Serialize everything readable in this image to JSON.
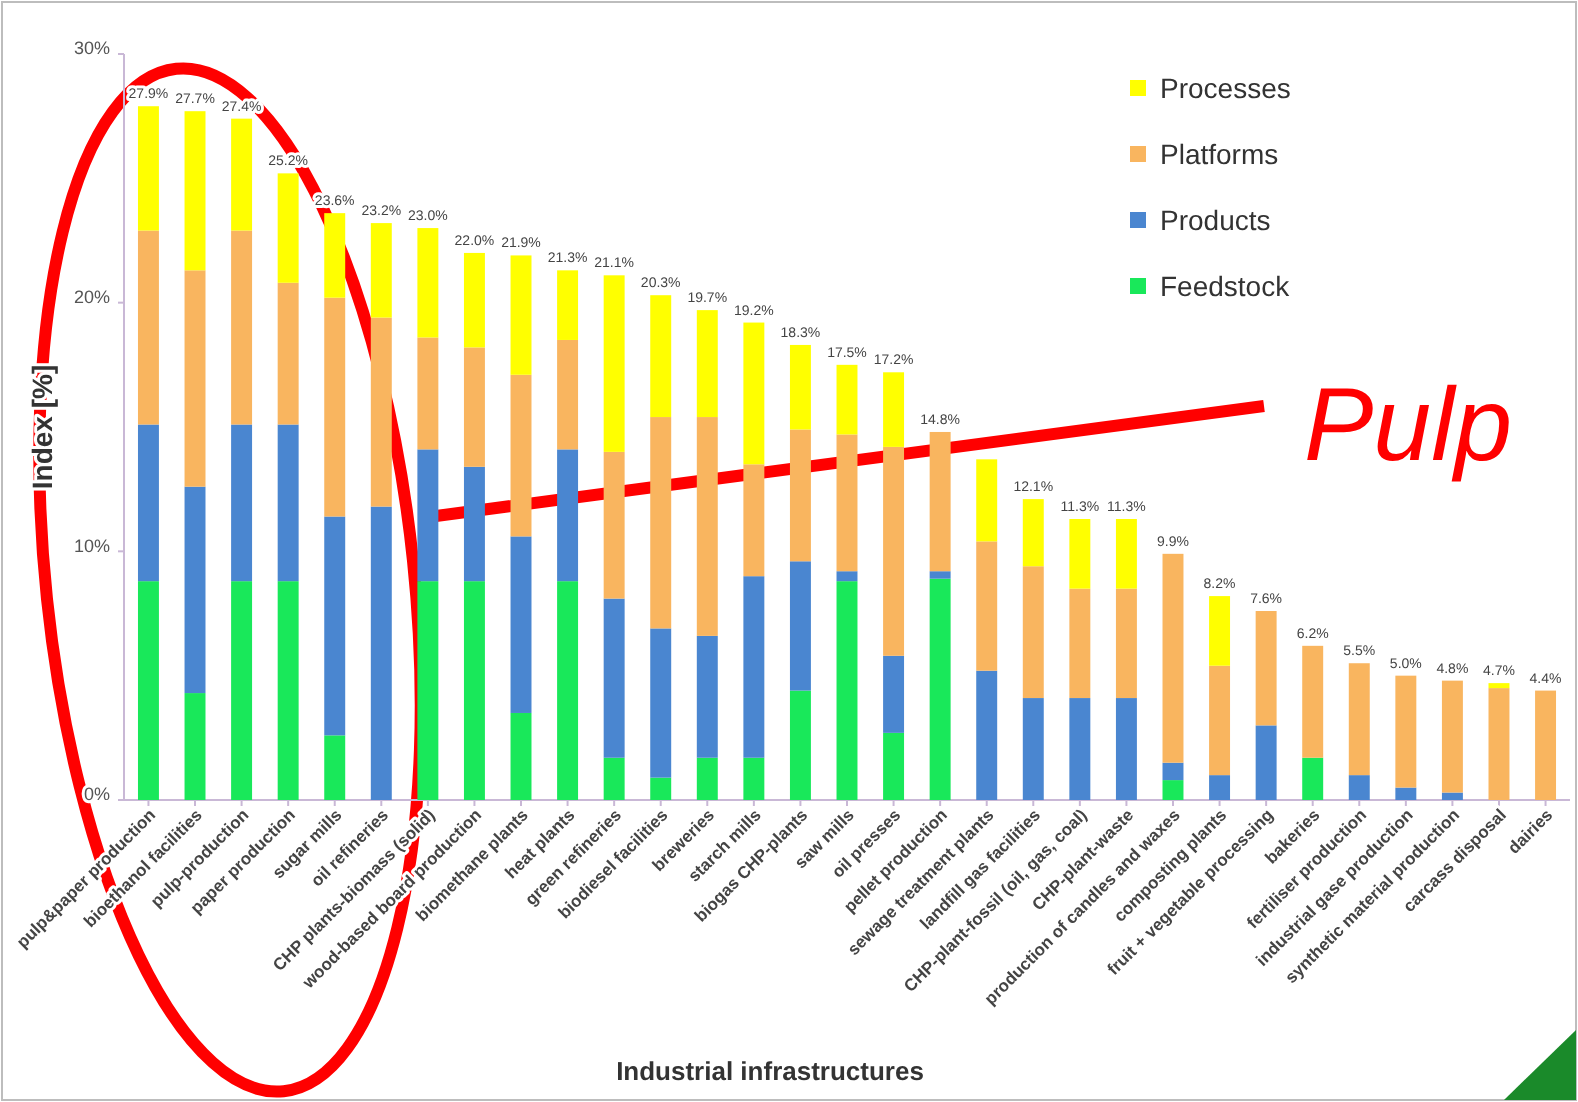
{
  "chart_data": {
    "type": "bar",
    "stacked": true,
    "xlabel": "Industrial infrastructures",
    "ylabel": "Index [%]",
    "categories": [
      "pulp&paper production",
      "bioethanol facilities",
      "pulp-production",
      "paper production",
      "sugar mills",
      "oil refineries",
      "CHP plants-biomass (solid)",
      "wood-based board production",
      "biomethane plants",
      "heat plants",
      "green refineries",
      "biodiesel facilities",
      "breweries",
      "starch mills",
      "biogas CHP-plants",
      "saw mills",
      "oil presses",
      "pellet production",
      "sewage treatment plants",
      "landfill gas facilities",
      "CHP-plant-fossil (oil, gas, coal)",
      "CHP-plant-waste",
      "production of candles and waxes",
      "composting plants",
      "fruit + vegetable processing",
      "bakeries",
      "fertiliser production",
      "industrial gase production",
      "synthetic material production",
      "carcass disposal",
      "dairies"
    ],
    "series": [
      {
        "name": "Feedstock",
        "color": "#19e85a",
        "values": [
          8.8,
          4.3,
          8.8,
          8.8,
          2.6,
          0,
          8.8,
          8.8,
          3.5,
          8.8,
          1.7,
          0.9,
          1.7,
          1.7,
          4.4,
          8.8,
          2.7,
          8.9,
          0,
          0,
          0,
          0,
          0.8,
          0,
          0,
          1.7,
          0,
          0,
          0,
          0,
          0
        ]
      },
      {
        "name": "Products",
        "color": "#4a86d0",
        "values": [
          6.3,
          8.3,
          6.3,
          6.3,
          8.8,
          11.8,
          5.3,
          4.6,
          7.1,
          5.3,
          6.4,
          6.0,
          4.9,
          7.3,
          5.2,
          0.4,
          3.1,
          0.3,
          5.2,
          4.1,
          4.1,
          4.1,
          0.7,
          1.0,
          3.0,
          0,
          1.0,
          0.5,
          0.3,
          0,
          0
        ]
      },
      {
        "name": "Platforms",
        "color": "#f9b55f",
        "values": [
          7.8,
          8.7,
          7.8,
          5.7,
          8.8,
          7.6,
          4.5,
          4.8,
          6.5,
          4.4,
          5.9,
          8.5,
          8.8,
          4.5,
          5.3,
          5.5,
          8.4,
          5.6,
          5.2,
          5.3,
          4.4,
          4.4,
          8.4,
          4.4,
          4.6,
          4.5,
          4.5,
          4.5,
          4.5,
          4.5,
          4.4
        ]
      },
      {
        "name": "Processes",
        "color": "#ffff00",
        "values": [
          5.0,
          6.4,
          4.5,
          4.4,
          3.4,
          3.8,
          4.4,
          3.8,
          4.8,
          2.8,
          7.1,
          4.9,
          4.3,
          5.7,
          3.4,
          2.8,
          3.0,
          0,
          3.3,
          2.7,
          2.8,
          2.8,
          0,
          2.8,
          0,
          0,
          0,
          0,
          0,
          0.2,
          0
        ]
      }
    ],
    "totals": [
      "27.9%",
      "27.7%",
      "27.4%",
      "25.2%",
      "23.6%",
      "23.2%",
      "23.0%",
      "22.0%",
      "21.9%",
      "21.3%",
      "21.1%",
      "20.3%",
      "19.7%",
      "19.2%",
      "18.3%",
      "17.5%",
      "17.2%",
      "14.8%",
      null,
      "12.1%",
      "11.3%",
      "11.3%",
      "9.9%",
      "8.2%",
      "7.6%",
      "6.2%",
      "5.5%",
      "5.0%",
      "4.8%",
      "4.7%",
      "4.4%"
    ],
    "ylim": [
      0,
      30
    ],
    "yticks": [
      {
        "value": 0,
        "label": "0%"
      },
      {
        "value": 10,
        "label": "10%"
      },
      {
        "value": 20,
        "label": "20%"
      },
      {
        "value": 30,
        "label": "30%"
      }
    ],
    "legend": "top right",
    "annotations": [
      "Pulp"
    ]
  }
}
